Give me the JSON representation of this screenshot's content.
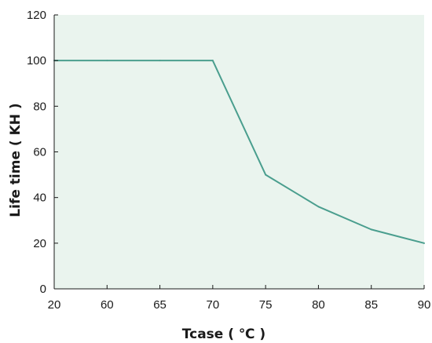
{
  "chart_data": {
    "type": "line",
    "title": "",
    "xlabel": "Tcase ( ℃ )",
    "ylabel": "Life time ( KH )",
    "categories": [
      "20",
      "60",
      "65",
      "70",
      "75",
      "80",
      "85",
      "90"
    ],
    "series": [
      {
        "values": [
          100,
          100,
          100,
          100,
          50,
          36,
          26,
          20
        ],
        "color": "#4a9e8e"
      }
    ],
    "ylim": [
      0,
      120
    ],
    "yticks": [
      0,
      20,
      40,
      60,
      80,
      100,
      120
    ],
    "grid": false,
    "legend": "none",
    "plot_background": "#eaf4ee",
    "axis_color": "#1a1a1a"
  }
}
